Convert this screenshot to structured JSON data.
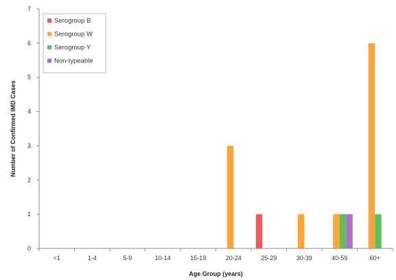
{
  "chart_data": {
    "type": "bar",
    "title": "",
    "xlabel": "Age Group (years)",
    "ylabel": "Number of Confirmed IMD Cases",
    "ylim": [
      0,
      7
    ],
    "yticks": [
      "0",
      "1",
      "2",
      "3",
      "4",
      "5",
      "6",
      "7"
    ],
    "grid": false,
    "legend_position": "top-left",
    "categories": [
      "<1",
      "1-4",
      "5-9",
      "10-14",
      "15-19",
      "20-24",
      "25-29",
      "30-39",
      "40-59",
      "60+"
    ],
    "series": [
      {
        "name": "Serogroup B",
        "color": "#f25a5a",
        "values": [
          0,
          0,
          0,
          0,
          0,
          0,
          1,
          0,
          0,
          0
        ]
      },
      {
        "name": "Serogroup W",
        "color": "#ffa637",
        "values": [
          0,
          0,
          0,
          0,
          0,
          3,
          0,
          1,
          1,
          6
        ]
      },
      {
        "name": "Serogroup Y",
        "color": "#5cc15c",
        "values": [
          0,
          0,
          0,
          0,
          0,
          0,
          0,
          0,
          1,
          1
        ]
      },
      {
        "name": "Non-typeable",
        "color": "#b06fc8",
        "values": [
          0,
          0,
          0,
          0,
          0,
          0,
          0,
          0,
          1,
          0
        ]
      }
    ]
  }
}
